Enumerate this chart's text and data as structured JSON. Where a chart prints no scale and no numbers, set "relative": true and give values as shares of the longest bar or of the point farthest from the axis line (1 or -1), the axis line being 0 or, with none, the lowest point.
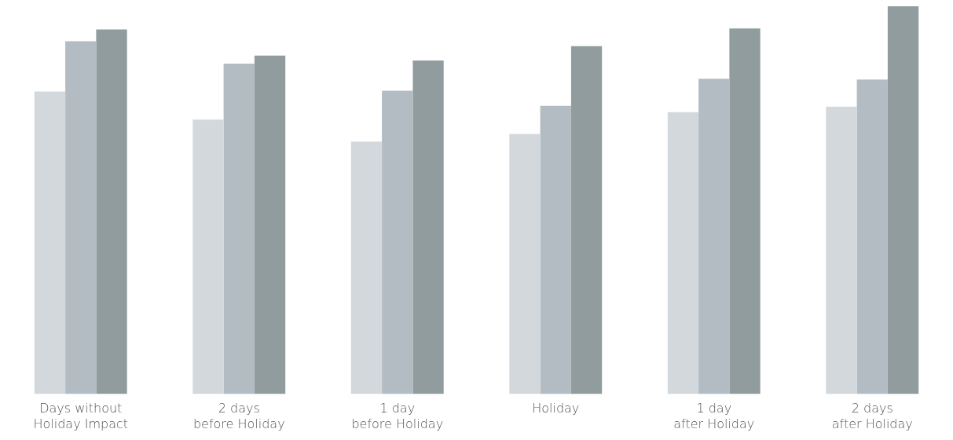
{
  "chart_data": {
    "type": "bar",
    "relative": true,
    "categories": [
      "Days without\nHoliday Impact",
      "2 days\nbefore Holiday",
      "1 day\nbefore Holiday",
      "Holiday",
      "1 day\nafter Holiday",
      "2 days\nafter Holiday"
    ],
    "series": [
      {
        "color": "#d3d8dc",
        "values": [
          0.78,
          0.708,
          0.651,
          0.671,
          0.727,
          0.741
        ]
      },
      {
        "color": "#b2bcc2",
        "values": [
          0.91,
          0.852,
          0.782,
          0.743,
          0.813,
          0.811
        ]
      },
      {
        "color": "#909c9d",
        "values": [
          0.94,
          0.873,
          0.86,
          0.897,
          0.943,
          1
        ]
      }
    ],
    "grid": false,
    "legend": false
  }
}
